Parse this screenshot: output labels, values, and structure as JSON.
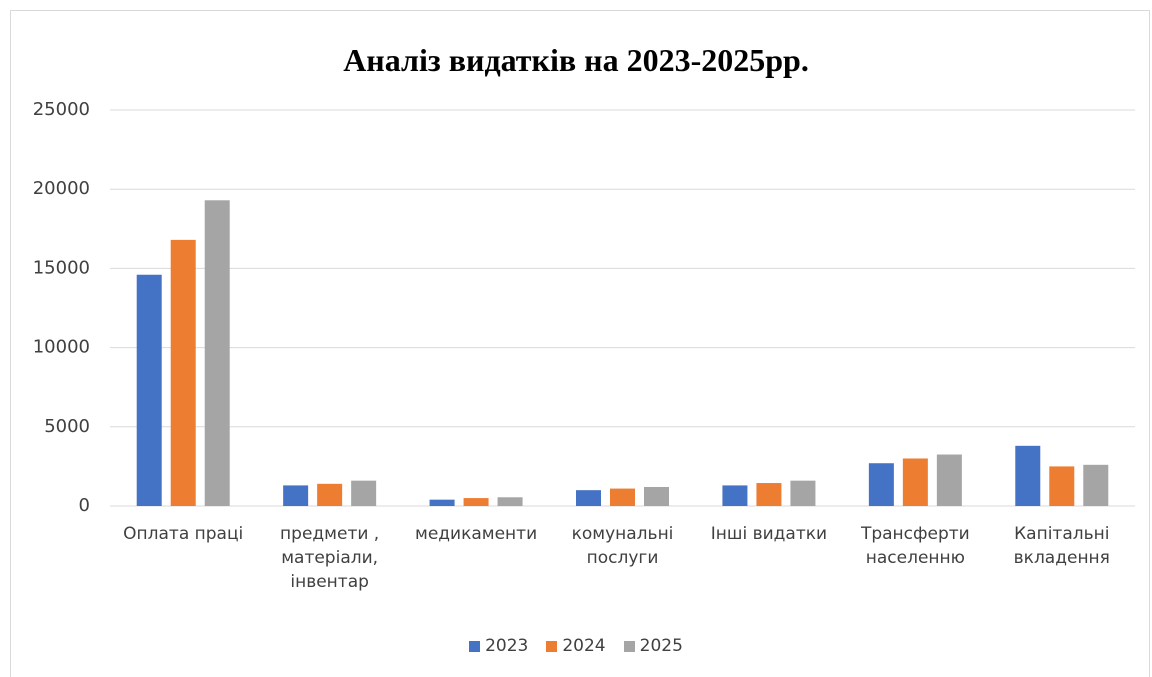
{
  "chart_data": {
    "type": "bar",
    "title": "Аналіз видатків  на 2023-2025рр.",
    "categories": [
      "Оплата праці",
      "предмети , матеріали, інвентар",
      "медикаменти",
      "комунальні послуги",
      "Інші видатки",
      "Трансферти населенню",
      "Капітальні вкладення"
    ],
    "series": [
      {
        "name": "2023",
        "color": "#4472c4",
        "values": [
          14600,
          1300,
          400,
          1000,
          1300,
          2700,
          3800
        ]
      },
      {
        "name": "2024",
        "color": "#ed7d31",
        "values": [
          16800,
          1400,
          500,
          1100,
          1450,
          3000,
          2500
        ]
      },
      {
        "name": "2025",
        "color": "#a5a5a5",
        "values": [
          19300,
          1600,
          550,
          1200,
          1600,
          3250,
          2600
        ]
      }
    ],
    "ylim": [
      0,
      25000
    ],
    "yticks": [
      0,
      5000,
      10000,
      15000,
      20000,
      25000
    ],
    "grid": true,
    "legend": "bottom"
  }
}
